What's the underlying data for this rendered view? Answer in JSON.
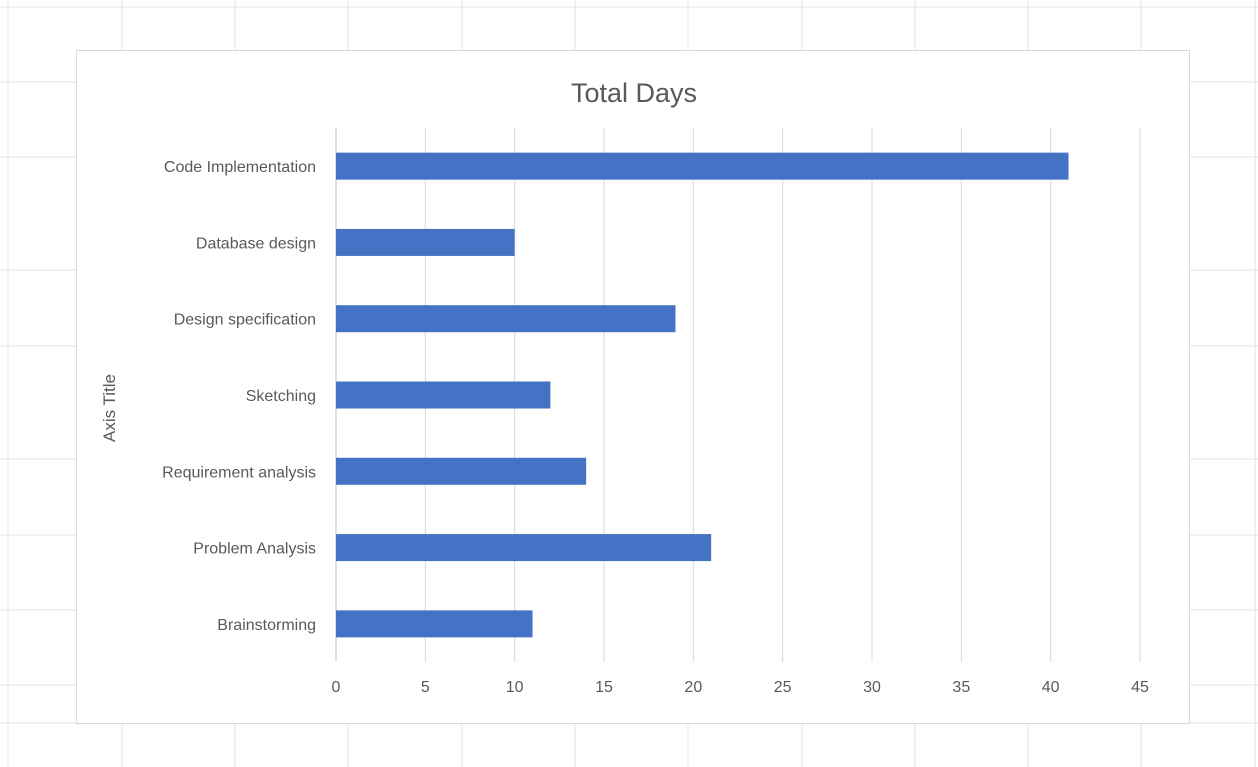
{
  "chart_data": {
    "type": "bar",
    "orientation": "horizontal",
    "title": "Total Days",
    "ylabel": "Axis Title",
    "xlabel": "",
    "categories": [
      "Code Implementation",
      "Database design",
      "Design specification",
      "Sketching",
      "Requirement analysis",
      "Problem Analysis",
      "Brainstorming"
    ],
    "values": [
      41,
      10,
      19,
      12,
      14,
      21,
      11
    ],
    "xlim": [
      0,
      45
    ],
    "x_ticks": [
      0,
      5,
      10,
      15,
      20,
      25,
      30,
      35,
      40,
      45
    ],
    "grid": "vertical",
    "legend": "none",
    "bar_color": "#4472c4"
  }
}
